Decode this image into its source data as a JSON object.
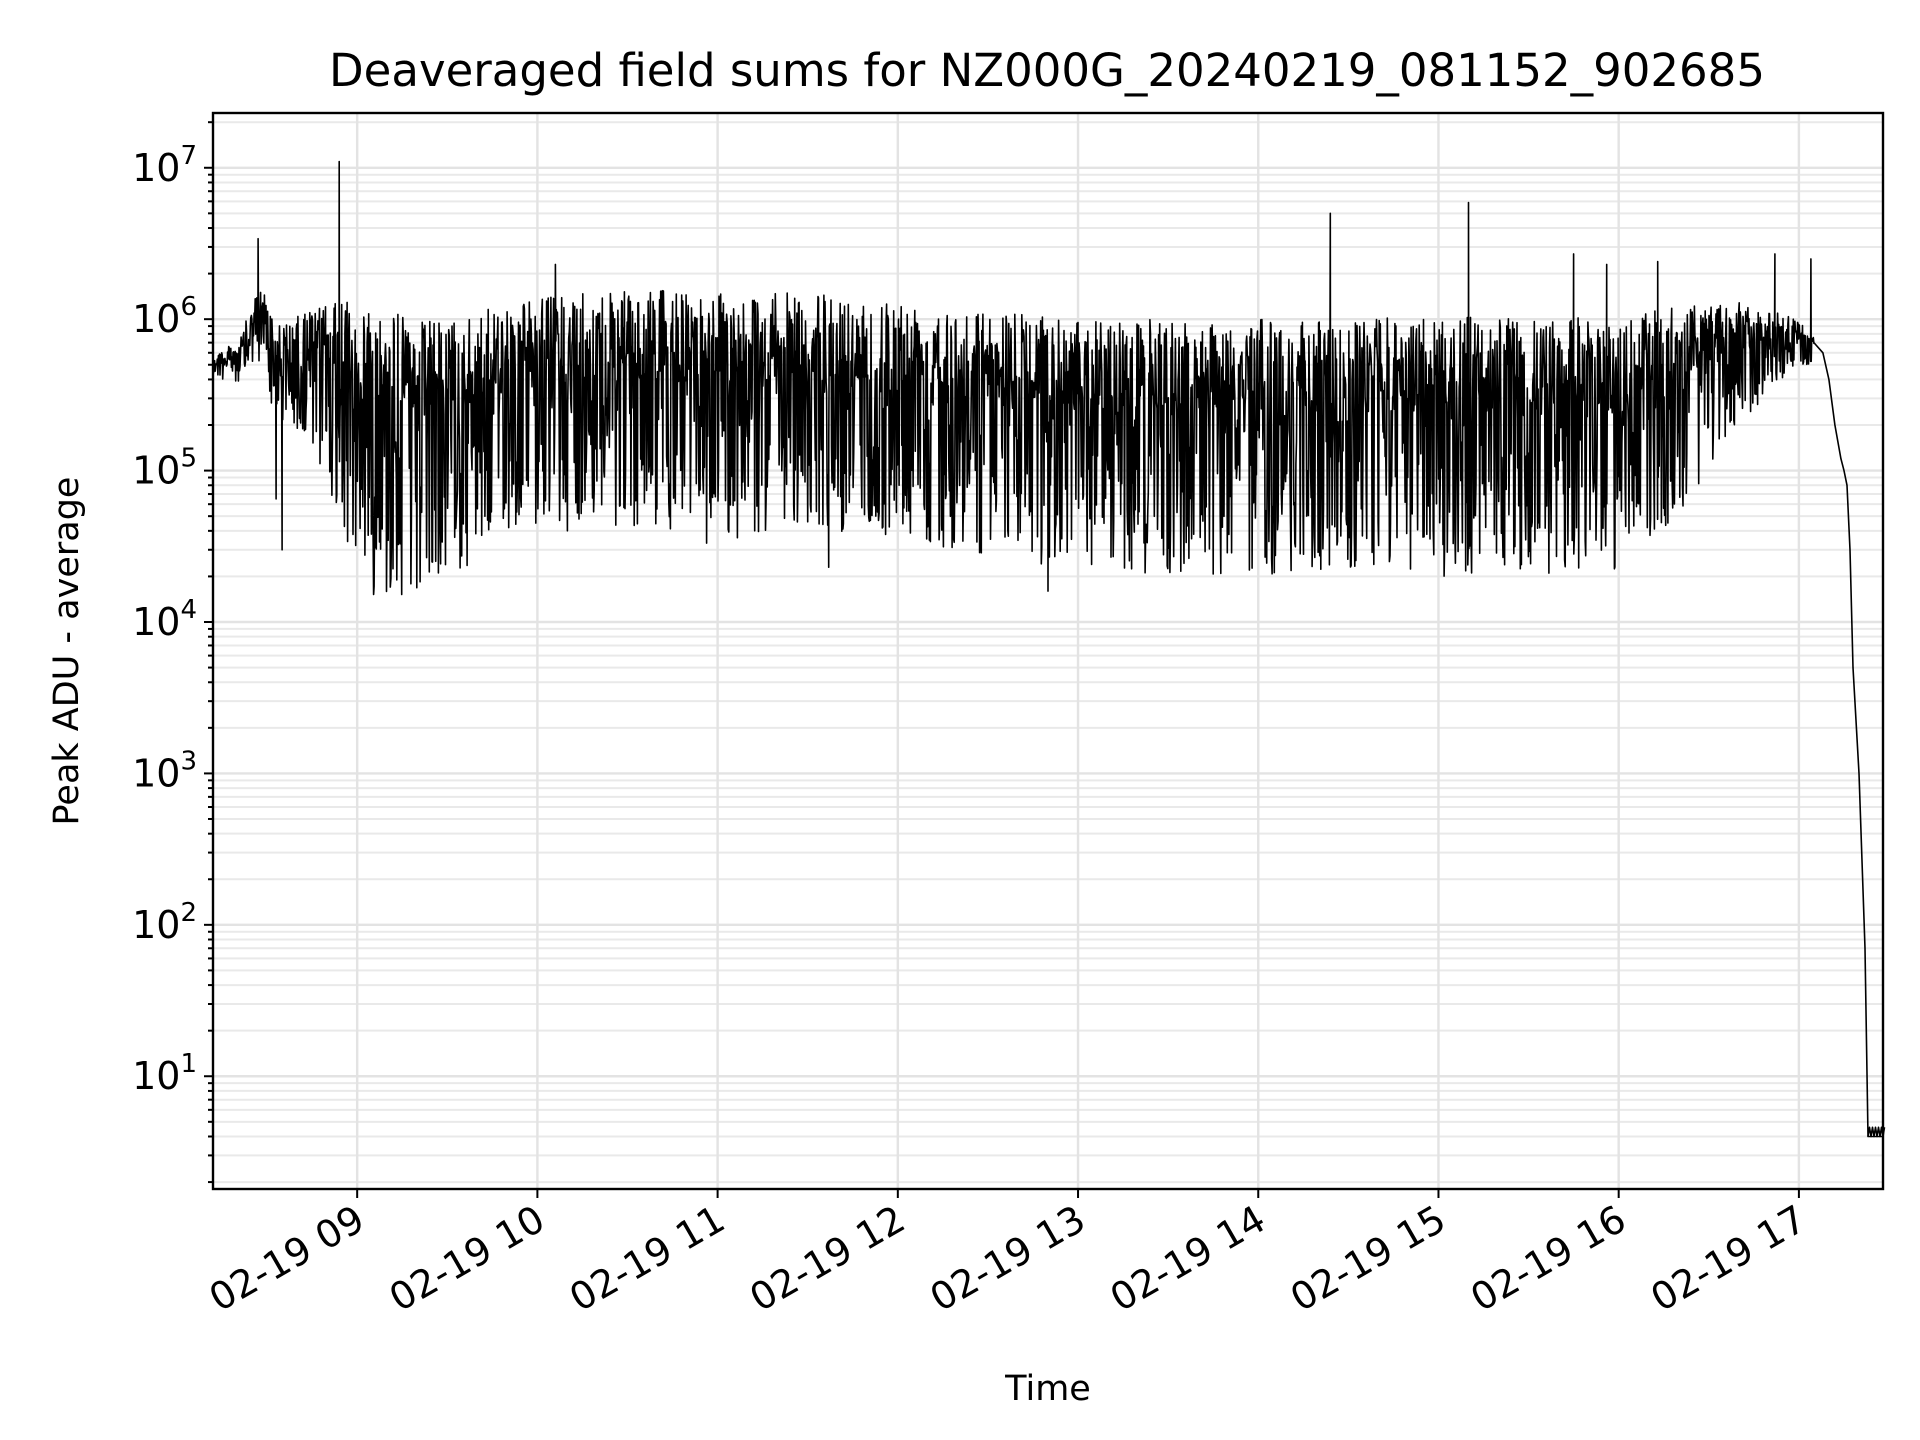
{
  "chart_data": {
    "type": "line",
    "title": "Deaveraged field sums for NZ000G_20240219_081152_902685",
    "xlabel": "Time",
    "ylabel": "Peak ADU - average",
    "yscale": "log",
    "ylim": [
      1.8,
      23000000
    ],
    "xlim": [
      "2024-02-19 08:12",
      "2024-02-19 17:28"
    ],
    "grid": true,
    "line_color": "#000000",
    "x_ticks": [
      {
        "at": "2024-02-19 09:00",
        "label": "02-19 09"
      },
      {
        "at": "2024-02-19 10:00",
        "label": "02-19 10"
      },
      {
        "at": "2024-02-19 11:00",
        "label": "02-19 11"
      },
      {
        "at": "2024-02-19 12:00",
        "label": "02-19 12"
      },
      {
        "at": "2024-02-19 13:00",
        "label": "02-19 13"
      },
      {
        "at": "2024-02-19 14:00",
        "label": "02-19 14"
      },
      {
        "at": "2024-02-19 15:00",
        "label": "02-19 15"
      },
      {
        "at": "2024-02-19 16:00",
        "label": "02-19 16"
      },
      {
        "at": "2024-02-19 17:00",
        "label": "02-19 17"
      }
    ],
    "y_ticks": [
      {
        "value": 10,
        "base": "10",
        "exp": "1"
      },
      {
        "value": 100,
        "base": "10",
        "exp": "2"
      },
      {
        "value": 1000,
        "base": "10",
        "exp": "3"
      },
      {
        "value": 10000,
        "base": "10",
        "exp": "4"
      },
      {
        "value": 100000,
        "base": "10",
        "exp": "5"
      },
      {
        "value": 1000000,
        "base": "10",
        "exp": "6"
      },
      {
        "value": 10000000,
        "base": "10",
        "exp": "7"
      }
    ],
    "envelope": [
      {
        "x": "2024-02-19 08:12",
        "high": 600000,
        "low": 400000
      },
      {
        "x": "2024-02-19 08:20",
        "high": 700000,
        "low": 350000
      },
      {
        "x": "2024-02-19 08:28",
        "high": 1700000,
        "low": 500000
      },
      {
        "x": "2024-02-19 08:35",
        "high": 900000,
        "low": 150000
      },
      {
        "x": "2024-02-19 08:45",
        "high": 1200000,
        "low": 150000
      },
      {
        "x": "2024-02-19 08:55",
        "high": 1300000,
        "low": 40000
      },
      {
        "x": "2024-02-19 09:05",
        "high": 1300000,
        "low": 15000
      },
      {
        "x": "2024-02-19 09:20",
        "high": 1000000,
        "low": 15000
      },
      {
        "x": "2024-02-19 09:35",
        "high": 1000000,
        "low": 20000
      },
      {
        "x": "2024-02-19 09:50",
        "high": 1300000,
        "low": 40000
      },
      {
        "x": "2024-02-19 10:00",
        "high": 1400000,
        "low": 45000
      },
      {
        "x": "2024-02-19 10:20",
        "high": 1500000,
        "low": 45000
      },
      {
        "x": "2024-02-19 10:40",
        "high": 1550000,
        "low": 40000
      },
      {
        "x": "2024-02-19 11:00",
        "high": 1500000,
        "low": 30000
      },
      {
        "x": "2024-02-19 11:20",
        "high": 1500000,
        "low": 40000
      },
      {
        "x": "2024-02-19 11:40",
        "high": 1450000,
        "low": 40000
      },
      {
        "x": "2024-02-19 12:00",
        "high": 1400000,
        "low": 35000
      },
      {
        "x": "2024-02-19 12:30",
        "high": 1150000,
        "low": 28000
      },
      {
        "x": "2024-02-19 13:00",
        "high": 1000000,
        "low": 20000
      },
      {
        "x": "2024-02-19 13:30",
        "high": 1000000,
        "low": 20000
      },
      {
        "x": "2024-02-19 14:00",
        "high": 1000000,
        "low": 20000
      },
      {
        "x": "2024-02-19 14:30",
        "high": 1000000,
        "low": 22000
      },
      {
        "x": "2024-02-19 15:00",
        "high": 1050000,
        "low": 20000
      },
      {
        "x": "2024-02-19 15:30",
        "high": 1000000,
        "low": 20000
      },
      {
        "x": "2024-02-19 16:00",
        "high": 1050000,
        "low": 22000
      },
      {
        "x": "2024-02-19 16:20",
        "high": 1200000,
        "low": 50000
      },
      {
        "x": "2024-02-19 16:40",
        "high": 1300000,
        "low": 200000
      },
      {
        "x": "2024-02-19 17:00",
        "high": 1000000,
        "low": 500000
      },
      {
        "x": "2024-02-19 17:05",
        "high": 750000,
        "low": 500000
      }
    ],
    "spikes": [
      {
        "x": "2024-02-19 08:27",
        "y": 3400000
      },
      {
        "x": "2024-02-19 08:33",
        "y": 65000
      },
      {
        "x": "2024-02-19 08:35",
        "y": 30000
      },
      {
        "x": "2024-02-19 08:54",
        "y": 11000000
      },
      {
        "x": "2024-02-19 10:06",
        "y": 2300000
      },
      {
        "x": "2024-02-19 10:10",
        "y": 40000
      },
      {
        "x": "2024-02-19 11:37",
        "y": 23000
      },
      {
        "x": "2024-02-19 12:50",
        "y": 16000
      },
      {
        "x": "2024-02-19 14:24",
        "y": 5000000
      },
      {
        "x": "2024-02-19 15:10",
        "y": 5900000
      },
      {
        "x": "2024-02-19 15:45",
        "y": 2700000
      },
      {
        "x": "2024-02-19 15:56",
        "y": 2300000
      },
      {
        "x": "2024-02-19 16:13",
        "y": 2400000
      },
      {
        "x": "2024-02-19 16:52",
        "y": 2700000
      },
      {
        "x": "2024-02-19 17:04",
        "y": 2500000
      }
    ],
    "tail": [
      {
        "x": "2024-02-19 17:05",
        "y": 700000
      },
      {
        "x": "2024-02-19 17:08",
        "y": 600000
      },
      {
        "x": "2024-02-19 17:10",
        "y": 400000
      },
      {
        "x": "2024-02-19 17:12",
        "y": 200000
      },
      {
        "x": "2024-02-19 17:14",
        "y": 120000
      },
      {
        "x": "2024-02-19 17:15",
        "y": 100000
      },
      {
        "x": "2024-02-19 17:16",
        "y": 80000
      },
      {
        "x": "2024-02-19 17:17",
        "y": 30000
      },
      {
        "x": "2024-02-19 17:18",
        "y": 5000
      },
      {
        "x": "2024-02-19 17:20",
        "y": 1000
      },
      {
        "x": "2024-02-19 17:22",
        "y": 70
      },
      {
        "x": "2024-02-19 17:23",
        "y": 4
      },
      {
        "x": "2024-02-19 17:28",
        "y": 4
      }
    ]
  }
}
